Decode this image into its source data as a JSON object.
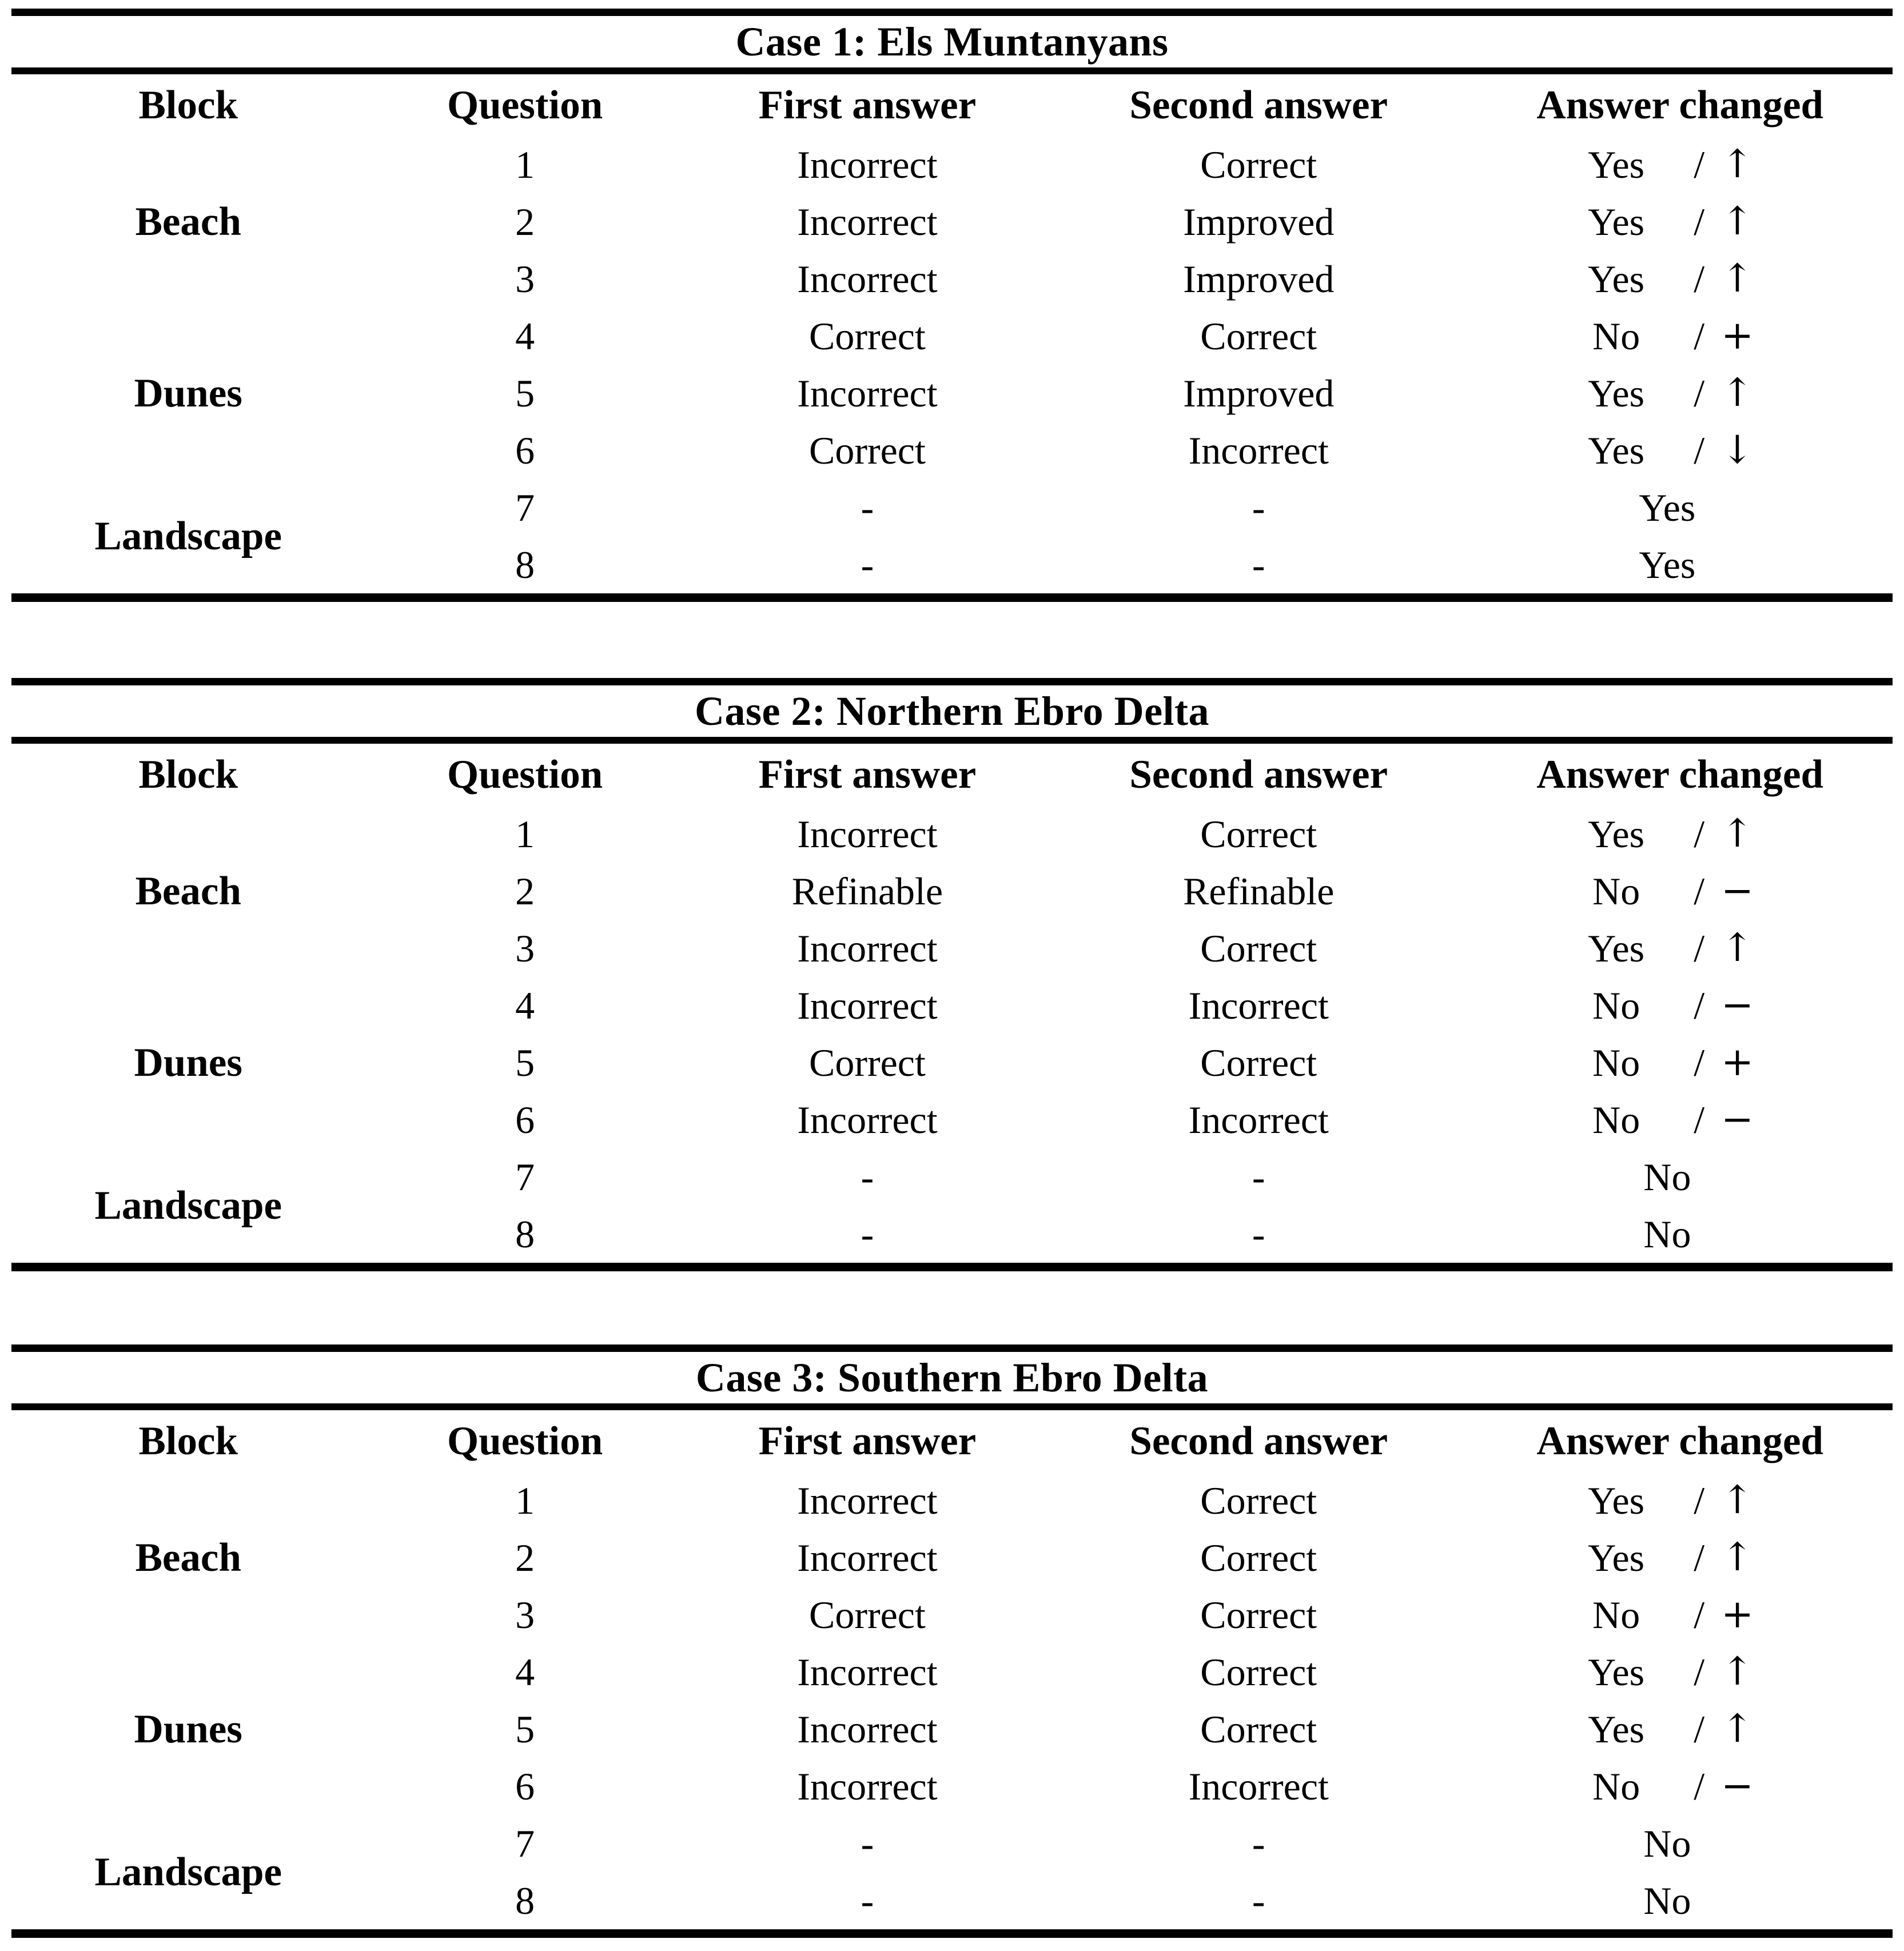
{
  "tables": [
    {
      "title": "Case 1: Els Muntanyans",
      "columns": [
        "Block",
        "Question",
        "First answer",
        "Second answer",
        "Answer changed"
      ],
      "blocks": [
        "Beach",
        "Dunes",
        "Landscape"
      ],
      "rows": [
        {
          "question": "1",
          "first": "Incorrect",
          "second": "Correct",
          "changed": "Yes",
          "slash": "/",
          "symbol": "↑"
        },
        {
          "question": "2",
          "first": "Incorrect",
          "second": "Improved",
          "changed": "Yes",
          "slash": "/",
          "symbol": "↑"
        },
        {
          "question": "3",
          "first": "Incorrect",
          "second": "Improved",
          "changed": "Yes",
          "slash": "/",
          "symbol": "↑"
        },
        {
          "question": "4",
          "first": "Correct",
          "second": "Correct",
          "changed": "No",
          "slash": "/",
          "symbol": "+"
        },
        {
          "question": "5",
          "first": "Incorrect",
          "second": "Improved",
          "changed": "Yes",
          "slash": "/",
          "symbol": "↑"
        },
        {
          "question": "6",
          "first": "Correct",
          "second": "Incorrect",
          "changed": "Yes",
          "slash": "/",
          "symbol": "↓"
        },
        {
          "question": "7",
          "first": "-",
          "second": "-",
          "changed": "Yes",
          "slash": "",
          "symbol": ""
        },
        {
          "question": "8",
          "first": "-",
          "second": "-",
          "changed": "Yes",
          "slash": "",
          "symbol": ""
        }
      ]
    },
    {
      "title": "Case 2: Northern Ebro Delta",
      "columns": [
        "Block",
        "Question",
        "First answer",
        "Second answer",
        "Answer changed"
      ],
      "blocks": [
        "Beach",
        "Dunes",
        "Landscape"
      ],
      "rows": [
        {
          "question": "1",
          "first": "Incorrect",
          "second": "Correct",
          "changed": "Yes",
          "slash": "/",
          "symbol": "↑"
        },
        {
          "question": "2",
          "first": "Refinable",
          "second": "Refinable",
          "changed": "No",
          "slash": "/",
          "symbol": "−"
        },
        {
          "question": "3",
          "first": "Incorrect",
          "second": "Correct",
          "changed": "Yes",
          "slash": "/",
          "symbol": "↑"
        },
        {
          "question": "4",
          "first": "Incorrect",
          "second": "Incorrect",
          "changed": "No",
          "slash": "/",
          "symbol": "−"
        },
        {
          "question": "5",
          "first": "Correct",
          "second": "Correct",
          "changed": "No",
          "slash": "/",
          "symbol": "+"
        },
        {
          "question": "6",
          "first": "Incorrect",
          "second": "Incorrect",
          "changed": "No",
          "slash": "/",
          "symbol": "−"
        },
        {
          "question": "7",
          "first": "-",
          "second": "-",
          "changed": "No",
          "slash": "",
          "symbol": ""
        },
        {
          "question": "8",
          "first": "-",
          "second": "-",
          "changed": "No",
          "slash": "",
          "symbol": ""
        }
      ]
    },
    {
      "title": "Case 3: Southern Ebro Delta",
      "columns": [
        "Block",
        "Question",
        "First answer",
        "Second answer",
        "Answer changed"
      ],
      "blocks": [
        "Beach",
        "Dunes",
        "Landscape"
      ],
      "rows": [
        {
          "question": "1",
          "first": "Incorrect",
          "second": "Correct",
          "changed": "Yes",
          "slash": "/",
          "symbol": "↑"
        },
        {
          "question": "2",
          "first": "Incorrect",
          "second": "Correct",
          "changed": "Yes",
          "slash": "/",
          "symbol": "↑"
        },
        {
          "question": "3",
          "first": "Correct",
          "second": "Correct",
          "changed": "No",
          "slash": "/",
          "symbol": "+"
        },
        {
          "question": "4",
          "first": "Incorrect",
          "second": "Correct",
          "changed": "Yes",
          "slash": "/",
          "symbol": "↑"
        },
        {
          "question": "5",
          "first": "Incorrect",
          "second": "Correct",
          "changed": "Yes",
          "slash": "/",
          "symbol": "↑"
        },
        {
          "question": "6",
          "first": "Incorrect",
          "second": "Incorrect",
          "changed": "No",
          "slash": "/",
          "symbol": "−"
        },
        {
          "question": "7",
          "first": "-",
          "second": "-",
          "changed": "No",
          "slash": "",
          "symbol": ""
        },
        {
          "question": "8",
          "first": "-",
          "second": "-",
          "changed": "No",
          "slash": "",
          "symbol": ""
        }
      ]
    }
  ]
}
